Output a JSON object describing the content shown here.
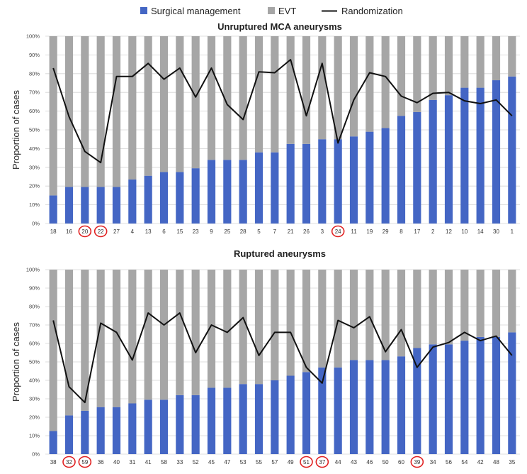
{
  "legend": {
    "surgical_label": "Surgical management",
    "evt_label": "EVT",
    "randomization_label": "Randomization"
  },
  "colors": {
    "surgical": "#4466c4",
    "evt": "#a6a6a6",
    "line": "#111111",
    "circle": "#e02020",
    "grid": "#d4d4d4"
  },
  "chart_data": [
    {
      "type": "bar",
      "stacked": true,
      "title": "Unruptured MCA aneurysms",
      "ylabel": "Proportion of cases",
      "ylim": [
        0,
        100
      ],
      "yticks": [
        "0%",
        "10%",
        "20%",
        "30%",
        "40%",
        "50%",
        "60%",
        "70%",
        "80%",
        "90%",
        "100%"
      ],
      "categories": [
        "18",
        "16",
        "20",
        "22",
        "27",
        "4",
        "13",
        "6",
        "15",
        "23",
        "9",
        "25",
        "28",
        "5",
        "7",
        "21",
        "26",
        "3",
        "24",
        "11",
        "19",
        "29",
        "8",
        "17",
        "2",
        "12",
        "10",
        "14",
        "30",
        "1"
      ],
      "circled": [
        "20",
        "22",
        "24"
      ],
      "series": [
        {
          "name": "Surgical management",
          "kind": "bar",
          "values": [
            15,
            19.5,
            19.5,
            19.5,
            19.5,
            23.5,
            25.5,
            27.5,
            27.5,
            29.5,
            34,
            34,
            34,
            38,
            38,
            42.5,
            42.5,
            45,
            45,
            46.5,
            49,
            51,
            57.5,
            59.5,
            66,
            68.5,
            72.5,
            72.5,
            76.5,
            78.5
          ]
        },
        {
          "name": "EVT",
          "kind": "bar",
          "values": [
            85,
            80.5,
            80.5,
            80.5,
            80.5,
            76.5,
            74.5,
            72.5,
            72.5,
            70.5,
            66,
            66,
            66,
            62,
            62,
            57.5,
            57.5,
            55,
            55,
            53.5,
            51,
            49,
            42.5,
            40.5,
            34,
            31.5,
            27.5,
            27.5,
            23.5,
            21.5
          ]
        },
        {
          "name": "Randomization",
          "kind": "line",
          "values": [
            83,
            57,
            38.5,
            32.5,
            78.5,
            78.5,
            85.5,
            77,
            83,
            67.5,
            83,
            63.5,
            55.5,
            81,
            80.5,
            87.5,
            57.5,
            85.5,
            43,
            66,
            80.5,
            78.5,
            68,
            64.5,
            69.5,
            70,
            65.5,
            64,
            66,
            57.5
          ]
        }
      ]
    },
    {
      "type": "bar",
      "stacked": true,
      "title": "Ruptured aneurysms",
      "ylabel": "Proportion of cases",
      "ylim": [
        0,
        100
      ],
      "yticks": [
        "0%",
        "10%",
        "20%",
        "30%",
        "40%",
        "50%",
        "60%",
        "70%",
        "80%",
        "90%",
        "100%"
      ],
      "categories": [
        "38",
        "32",
        "59",
        "36",
        "40",
        "31",
        "41",
        "58",
        "33",
        "52",
        "45",
        "47",
        "53",
        "55",
        "57",
        "49",
        "51",
        "37",
        "44",
        "43",
        "46",
        "50",
        "60",
        "39",
        "34",
        "56",
        "54",
        "42",
        "48",
        "35"
      ],
      "circled": [
        "32",
        "59",
        "51",
        "37",
        "39"
      ],
      "series": [
        {
          "name": "Surgical management",
          "kind": "bar",
          "values": [
            12.5,
            21,
            23.5,
            25.5,
            25.5,
            27.5,
            29.5,
            29.5,
            32,
            32,
            36,
            36,
            38,
            38,
            40,
            42.5,
            44.5,
            47,
            47,
            51,
            51,
            51,
            53,
            57.5,
            59.5,
            59.5,
            61.5,
            63.5,
            63.5,
            66
          ]
        },
        {
          "name": "EVT",
          "kind": "bar",
          "values": [
            87.5,
            79,
            76.5,
            74.5,
            74.5,
            72.5,
            70.5,
            70.5,
            68,
            68,
            64,
            64,
            62,
            62,
            60,
            57.5,
            55.5,
            53,
            53,
            49,
            49,
            49,
            47,
            42.5,
            40.5,
            40.5,
            38.5,
            36.5,
            36.5,
            34
          ]
        },
        {
          "name": "Randomization",
          "kind": "line",
          "values": [
            72.5,
            36.5,
            28,
            71,
            66,
            51,
            76.5,
            70,
            76.5,
            55,
            70,
            66,
            74,
            53.5,
            66,
            66,
            47,
            38.5,
            72.5,
            68.5,
            74.5,
            55.5,
            67.5,
            47,
            58,
            60.5,
            66,
            61.5,
            64,
            53.5
          ]
        }
      ]
    }
  ]
}
